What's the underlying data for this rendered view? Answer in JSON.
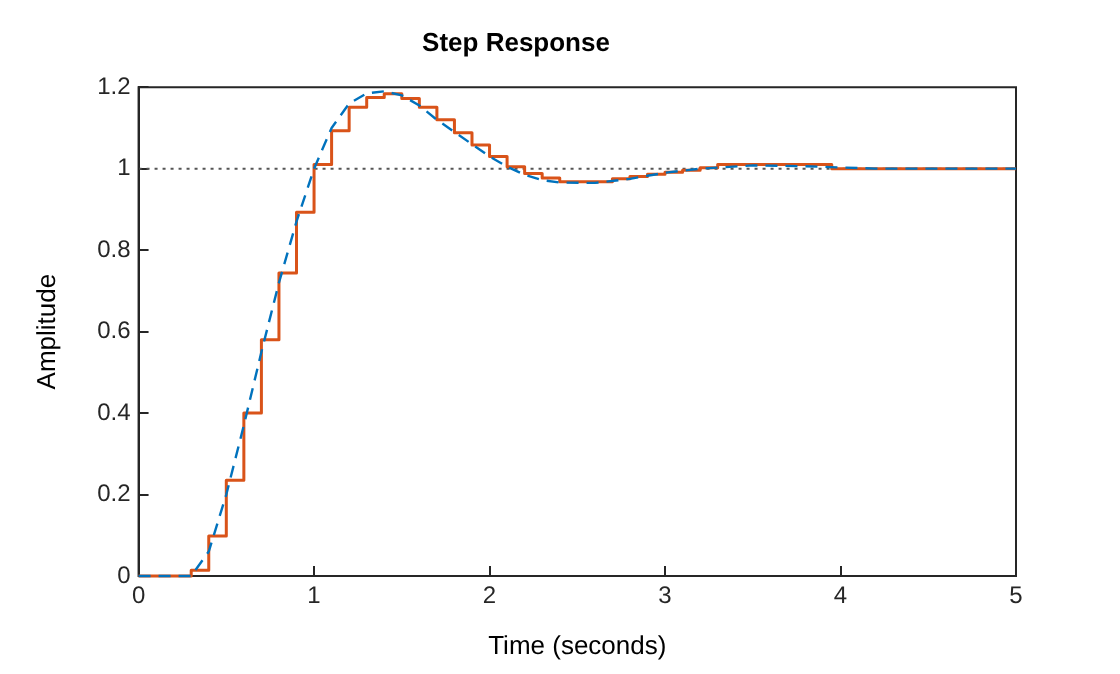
{
  "chart_data": {
    "type": "line",
    "title": "Step Response",
    "xlabel": "Time (seconds)",
    "ylabel": "Amplitude",
    "xlim": [
      0,
      5
    ],
    "xticks": [
      0,
      1,
      2,
      3,
      4,
      5
    ],
    "ylim": [
      0,
      1.2
    ],
    "yticks": [
      0,
      0.2,
      0.4,
      0.6,
      0.8,
      1,
      1.2
    ],
    "grid": false,
    "legend": false,
    "marker": "none",
    "series": [
      {
        "type": "line",
        "line_style": "dashed",
        "color": "#0072bd",
        "x": [
          0,
          0.3,
          0.4,
          0.5,
          0.6,
          0.7,
          0.8,
          0.9,
          1.0,
          1.1,
          1.2,
          1.3,
          1.4,
          1.5,
          1.6,
          1.7,
          1.8,
          1.9,
          2.0,
          2.1,
          2.2,
          2.3,
          2.4,
          2.6,
          2.8,
          3.0,
          3.2,
          3.5,
          3.8,
          4.2,
          5
        ],
        "values": [
          0,
          0,
          0.06,
          0.2,
          0.37,
          0.55,
          0.72,
          0.87,
          1.0,
          1.1,
          1.16,
          1.185,
          1.19,
          1.18,
          1.155,
          1.12,
          1.09,
          1.06,
          1.03,
          1.005,
          0.985,
          0.972,
          0.966,
          0.965,
          0.975,
          0.99,
          1.0,
          1.008,
          1.006,
          1.0,
          1.0
        ]
      },
      {
        "type": "step",
        "line_style": "solid",
        "color": "#d95319",
        "x": [
          0,
          0.3,
          0.4,
          0.5,
          0.6,
          0.7,
          0.8,
          0.9,
          1.0,
          1.1,
          1.2,
          1.3,
          1.4,
          1.5,
          1.6,
          1.7,
          1.8,
          1.9,
          2.0,
          2.1,
          2.2,
          2.3,
          2.4,
          2.7,
          2.8,
          2.9,
          3.0,
          3.1,
          3.2,
          3.3,
          3.95,
          5
        ],
        "values": [
          0,
          0.014,
          0.098,
          0.235,
          0.4,
          0.58,
          0.744,
          0.893,
          1.01,
          1.093,
          1.151,
          1.175,
          1.184,
          1.172,
          1.151,
          1.12,
          1.088,
          1.058,
          1.03,
          1.005,
          0.988,
          0.977,
          0.968,
          0.975,
          0.981,
          0.986,
          0.991,
          0.996,
          1.002,
          1.01,
          1.0,
          1.0
        ]
      }
    ],
    "ref_lines": [
      {
        "axis": "y",
        "value": 1,
        "color": "#555555",
        "line_style": "dotted"
      }
    ]
  }
}
